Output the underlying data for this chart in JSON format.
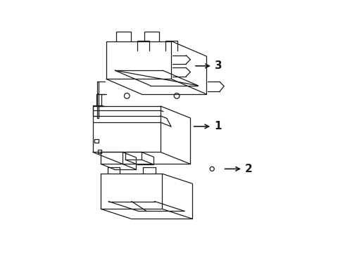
{
  "background_color": "#ffffff",
  "line_color": "#1a1a1a",
  "line_width": 0.9,
  "fig_w": 4.9,
  "fig_h": 3.6,
  "dpi": 100
}
